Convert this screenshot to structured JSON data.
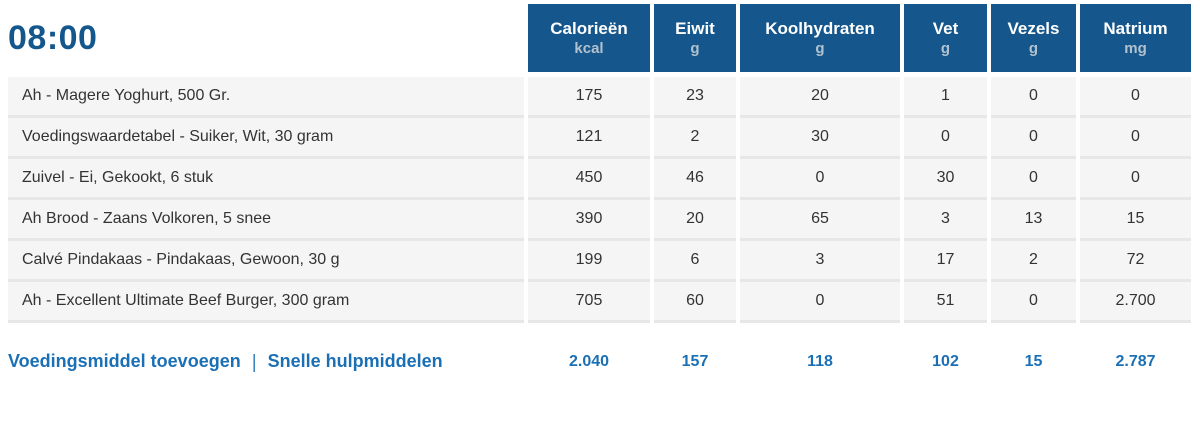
{
  "meal": {
    "time": "08:00"
  },
  "columns": [
    {
      "label": "Calorieën",
      "unit": "kcal"
    },
    {
      "label": "Eiwit",
      "unit": "g"
    },
    {
      "label": "Koolhydraten",
      "unit": "g"
    },
    {
      "label": "Vet",
      "unit": "g"
    },
    {
      "label": "Vezels",
      "unit": "g"
    },
    {
      "label": "Natrium",
      "unit": "mg"
    }
  ],
  "rows": [
    {
      "food": "Ah - Magere Yoghurt, 500 Gr.",
      "values": [
        "175",
        "23",
        "20",
        "1",
        "0",
        "0"
      ]
    },
    {
      "food": "Voedingswaardetabel - Suiker, Wit, 30 gram",
      "values": [
        "121",
        "2",
        "30",
        "0",
        "0",
        "0"
      ]
    },
    {
      "food": "Zuivel - Ei, Gekookt, 6 stuk",
      "values": [
        "450",
        "46",
        "0",
        "30",
        "0",
        "0"
      ]
    },
    {
      "food": "Ah Brood - Zaans Volkoren, 5 snee",
      "values": [
        "390",
        "20",
        "65",
        "3",
        "13",
        "15"
      ]
    },
    {
      "food": "Calvé Pindakaas - Pindakaas, Gewoon, 30 g",
      "values": [
        "199",
        "6",
        "3",
        "17",
        "2",
        "72"
      ]
    },
    {
      "food": "Ah - Excellent Ultimate Beef Burger, 300 gram",
      "values": [
        "705",
        "60",
        "0",
        "51",
        "0",
        "2.700"
      ]
    }
  ],
  "footer": {
    "add_food_label": "Voedingsmiddel toevoegen",
    "separator": "|",
    "quick_tools_label": "Snelle hulpmiddelen",
    "totals": [
      "2.040",
      "157",
      "118",
      "102",
      "15",
      "2.787"
    ]
  },
  "colors": {
    "header_bg": "#15578c",
    "unit_color": "#b2c1ce",
    "link_blue": "#1b70b5",
    "time_blue": "#14578c",
    "row_bg": "#f5f5f5",
    "row_border": "#e7e7e7",
    "text_color": "#333333"
  }
}
